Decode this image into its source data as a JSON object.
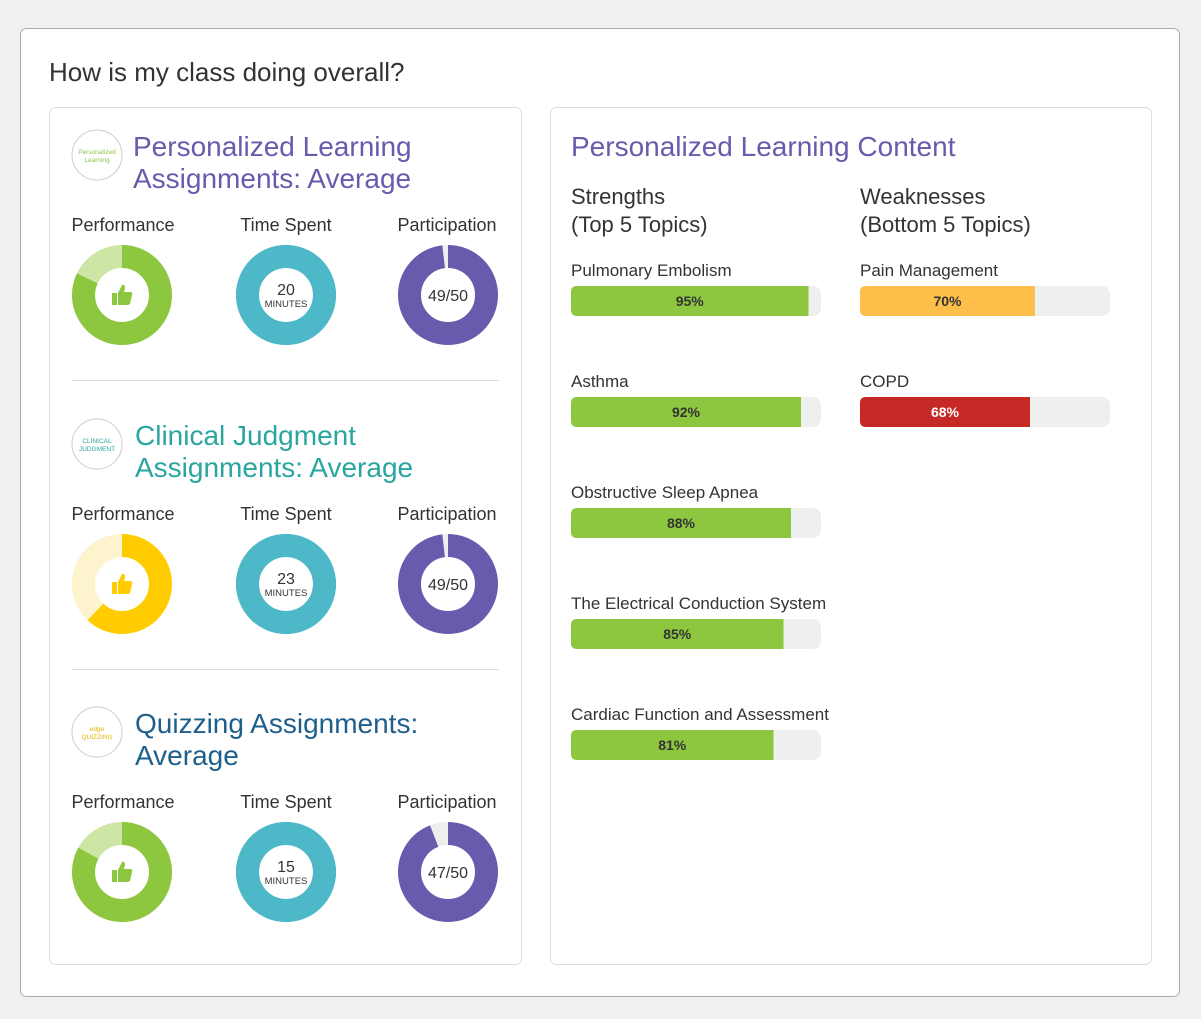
{
  "header": {
    "title": "How is my class doing overall?"
  },
  "assignments": [
    {
      "logo": [
        "Personalized",
        "Learning"
      ],
      "logo_color": "#8dc63f",
      "title": [
        "Personalized Learning",
        "Assignments: Average"
      ],
      "title_color": "#6a5aad",
      "performance": {
        "label": "Performance",
        "value": 82,
        "color": "#8dc63f",
        "track": "#cde6a6"
      },
      "time_spent": {
        "label": "Time Spent",
        "value": 20,
        "unit": "MINUTES"
      },
      "participation": {
        "label": "Participation",
        "value": 49,
        "total": 50,
        "text": "49/50"
      }
    },
    {
      "logo": [
        "CLINICAL",
        "JUDGMENT"
      ],
      "logo_color": "#2aa5a0",
      "title": [
        "Clinical Judgment",
        "Assignments: Average"
      ],
      "title_color": "#2aa5a0",
      "performance": {
        "label": "Performance",
        "value": 62,
        "color": "#ffcc00",
        "track": "#fdf3cc"
      },
      "time_spent": {
        "label": "Time Spent",
        "value": 23,
        "unit": "MINUTES"
      },
      "participation": {
        "label": "Participation",
        "value": 49,
        "total": 50,
        "text": "49/50"
      }
    },
    {
      "logo": [
        "edge",
        "QUIZZING"
      ],
      "logo_color": "#e8b400",
      "title": [
        "Quizzing Assignments:",
        "Average"
      ],
      "title_color": "#1e5f8c",
      "performance": {
        "label": "Performance",
        "value": 83,
        "color": "#8dc63f",
        "track": "#cde6a6"
      },
      "time_spent": {
        "label": "Time Spent",
        "value": 15,
        "unit": "MINUTES"
      },
      "participation": {
        "label": "Participation",
        "value": 47,
        "total": 50,
        "text": "47/50"
      }
    }
  ],
  "content": {
    "title": "Personalized Learning Content",
    "title_color": "#6a5aad",
    "columns": [
      {
        "heading": [
          "Strengths",
          "(Top 5 Topics)"
        ],
        "topics": [
          {
            "name": "Pulmonary Embolism",
            "value": 95,
            "value_label": "95%",
            "color": "#8dc63f",
            "label_color": "#333"
          },
          {
            "name": "Asthma",
            "value": 92,
            "value_label": "92%",
            "color": "#8dc63f",
            "label_color": "#333"
          },
          {
            "name": "Obstructive Sleep Apnea",
            "value": 88,
            "value_label": "88%",
            "color": "#8dc63f",
            "label_color": "#333"
          },
          {
            "name": "The Electrical Conduction System",
            "value": 85,
            "value_label": "85%",
            "color": "#8dc63f",
            "label_color": "#333"
          },
          {
            "name": "Cardiac Function and Assessment",
            "value": 81,
            "value_label": "81%",
            "color": "#8dc63f",
            "label_color": "#333"
          }
        ]
      },
      {
        "heading": [
          "Weaknesses",
          "(Bottom 5 Topics)"
        ],
        "topics": [
          {
            "name": "Pain Management",
            "value": 70,
            "value_label": "70%",
            "color": "#fdbf4a",
            "label_color": "#333"
          },
          {
            "name": "COPD",
            "value": 68,
            "value_label": "68%",
            "color": "#c62828",
            "label_color": "#fff"
          }
        ]
      }
    ]
  }
}
